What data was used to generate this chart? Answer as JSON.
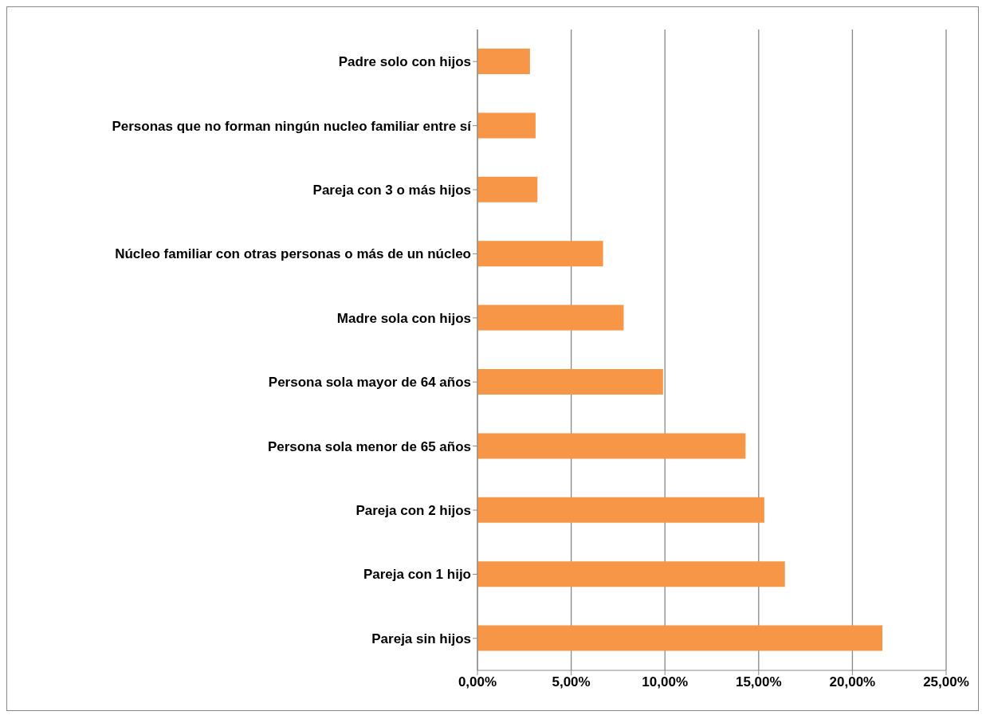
{
  "chart_data": {
    "type": "bar",
    "orientation": "horizontal",
    "categories": [
      "Padre solo con hijos",
      "Personas que no forman ningún nucleo familiar entre sí",
      "Pareja con 3 o más hijos",
      "Núcleo familiar con otras personas o más de un núcleo",
      "Madre sola con hijos",
      "Persona sola mayor de 64 años",
      "Persona sola menor de 65 años",
      "Pareja con 2 hijos",
      "Pareja con 1 hijo",
      "Pareja sin hijos"
    ],
    "values": [
      2.8,
      3.1,
      3.2,
      6.7,
      7.8,
      9.9,
      14.3,
      15.3,
      16.4,
      21.6
    ],
    "color": "#f79646",
    "xlim": [
      0,
      25
    ],
    "xticks": [
      {
        "value": 0,
        "label": "0,00%"
      },
      {
        "value": 5,
        "label": "5,00%"
      },
      {
        "value": 10,
        "label": "10,00%"
      },
      {
        "value": 15,
        "label": "15,00%"
      },
      {
        "value": 20,
        "label": "20,00%"
      },
      {
        "value": 25,
        "label": "25,00%"
      }
    ],
    "grid": "x"
  }
}
